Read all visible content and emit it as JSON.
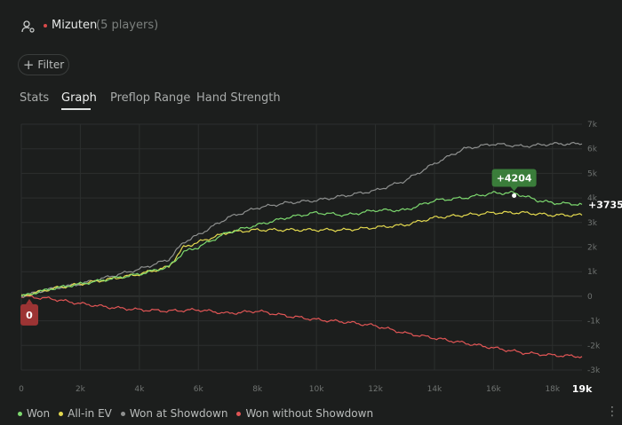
{
  "header": {
    "title": "Mizuten",
    "subtitle": "(5 players)",
    "user_icon": "user-settings-icon",
    "status_color": "#d84a4a"
  },
  "filter": {
    "label": "Filter",
    "icon": "plus-icon"
  },
  "tabs": [
    {
      "label": "Stats",
      "active": false
    },
    {
      "label": "Graph",
      "active": true
    },
    {
      "label": "Preflop Range",
      "active": false
    },
    {
      "label": "Hand Strength",
      "active": false
    }
  ],
  "chart_data": {
    "type": "line",
    "title": "",
    "xlabel": "",
    "ylabel": "",
    "xlim": [
      0,
      19000
    ],
    "ylim": [
      -3000,
      7000
    ],
    "x_ticks": [
      "0",
      "2k",
      "4k",
      "6k",
      "8k",
      "10k",
      "12k",
      "14k",
      "16k",
      "18k"
    ],
    "x_end_label": "19k",
    "y_ticks": [
      "7k",
      "6k",
      "5k",
      "4k",
      "3k",
      "2k",
      "1k",
      "0",
      "-1k",
      "-2k",
      "-3k"
    ],
    "grid": true,
    "legend_position": "bottom-left",
    "annotations": {
      "peak": "+4204",
      "end": "+3735",
      "start": "0"
    },
    "series": [
      {
        "name": "Won",
        "color": "#7dd96f",
        "x": [
          0,
          1000,
          2000,
          3000,
          4000,
          5000,
          5500,
          6000,
          7000,
          8000,
          9000,
          10000,
          11000,
          12000,
          13000,
          14000,
          15000,
          16000,
          16700,
          17500,
          18000,
          19000
        ],
        "y": [
          0,
          300,
          500,
          700,
          900,
          1200,
          1800,
          2000,
          2600,
          2900,
          3200,
          3400,
          3300,
          3500,
          3500,
          3900,
          4000,
          4200,
          4204,
          3900,
          3800,
          3735
        ]
      },
      {
        "name": "All-in EV",
        "color": "#e3d94f",
        "x": [
          0,
          1000,
          2000,
          3000,
          4000,
          5000,
          5500,
          6000,
          7000,
          8000,
          9000,
          10000,
          11000,
          12000,
          13000,
          14000,
          15000,
          16000,
          17000,
          18000,
          19000
        ],
        "y": [
          0,
          300,
          500,
          700,
          900,
          1200,
          2000,
          2200,
          2600,
          2700,
          2700,
          2700,
          2700,
          2800,
          2900,
          3200,
          3300,
          3400,
          3400,
          3300,
          3300
        ]
      },
      {
        "name": "Won at Showdown",
        "color": "#8e908f",
        "x": [
          0,
          1000,
          2000,
          3000,
          4000,
          5000,
          5500,
          6000,
          7000,
          8000,
          9000,
          10000,
          11000,
          12000,
          13000,
          14000,
          15000,
          16000,
          17000,
          18000,
          19000
        ],
        "y": [
          0,
          300,
          500,
          800,
          1100,
          1500,
          2200,
          2500,
          3200,
          3600,
          3800,
          3900,
          4100,
          4300,
          4700,
          5400,
          6000,
          6200,
          6100,
          6200,
          6200
        ]
      },
      {
        "name": "Won without Showdown",
        "color": "#e05555",
        "x": [
          0,
          1000,
          2000,
          3000,
          4000,
          5000,
          6000,
          7000,
          8000,
          9000,
          10000,
          11000,
          12000,
          13000,
          14000,
          15000,
          16000,
          17000,
          18000,
          19000
        ],
        "y": [
          0,
          -100,
          -300,
          -450,
          -550,
          -600,
          -550,
          -700,
          -600,
          -800,
          -950,
          -1050,
          -1200,
          -1500,
          -1700,
          -1900,
          -2100,
          -2300,
          -2400,
          -2450
        ]
      }
    ]
  },
  "colors": {
    "background": "#1c1e1d",
    "grid": "#2c2f2e",
    "axis_text": "#6f7371",
    "tag_green": "#3a7d3a",
    "tag_red": "#9c3434"
  },
  "menu_icon": "more-vertical-icon"
}
